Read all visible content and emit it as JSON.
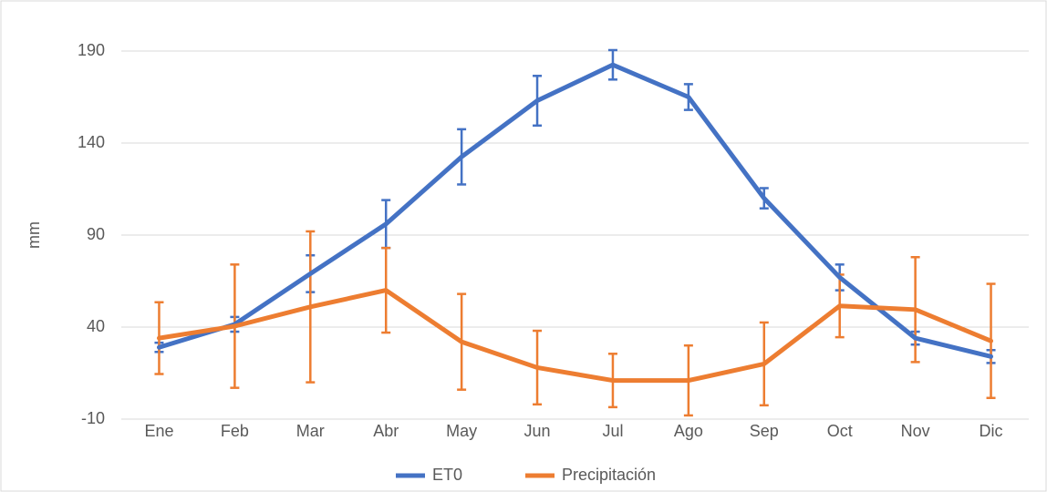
{
  "chart_data": {
    "type": "line",
    "y_label": "mm",
    "categories": [
      "Ene",
      "Feb",
      "Mar",
      "Abr",
      "May",
      "Jun",
      "Jul",
      "Ago",
      "Sep",
      "Oct",
      "Nov",
      "Dic"
    ],
    "series": [
      {
        "name": "ET0",
        "color": "#4472c4",
        "values": [
          29,
          41.5,
          69,
          96,
          132.5,
          163,
          182.5,
          165,
          110,
          67,
          34,
          24
        ],
        "errors": [
          2.5,
          4,
          10,
          13,
          15,
          13.5,
          8,
          7,
          5.5,
          7,
          3.5,
          3.5
        ]
      },
      {
        "name": "Precipitación",
        "color": "#ed7d31",
        "values": [
          34,
          40.5,
          51,
          60,
          32,
          18,
          11,
          11,
          20,
          51.5,
          49.5,
          32.5
        ],
        "errors": [
          19.5,
          33.5,
          41,
          23,
          26,
          20,
          14.5,
          19,
          22.5,
          17,
          28.5,
          31
        ]
      }
    ],
    "ylim": [
      -10,
      190
    ],
    "yticks": [
      -10,
      40,
      90,
      140,
      190
    ],
    "grid": true,
    "legend": "bottom"
  }
}
